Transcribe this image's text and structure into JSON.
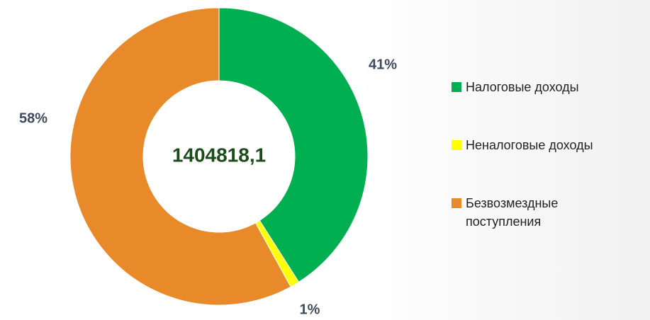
{
  "chart_data": {
    "type": "donut",
    "center_text": "1404818,1",
    "categories": [
      "Налоговые доходы",
      "Неналоговые доходы",
      "Безвозмездные поступления"
    ],
    "values": [
      41,
      1,
      58
    ],
    "value_labels": [
      "41%",
      "1%",
      "58%"
    ],
    "colors": [
      "#00b050",
      "#ffff00",
      "#e8892a"
    ],
    "legend": "right"
  }
}
